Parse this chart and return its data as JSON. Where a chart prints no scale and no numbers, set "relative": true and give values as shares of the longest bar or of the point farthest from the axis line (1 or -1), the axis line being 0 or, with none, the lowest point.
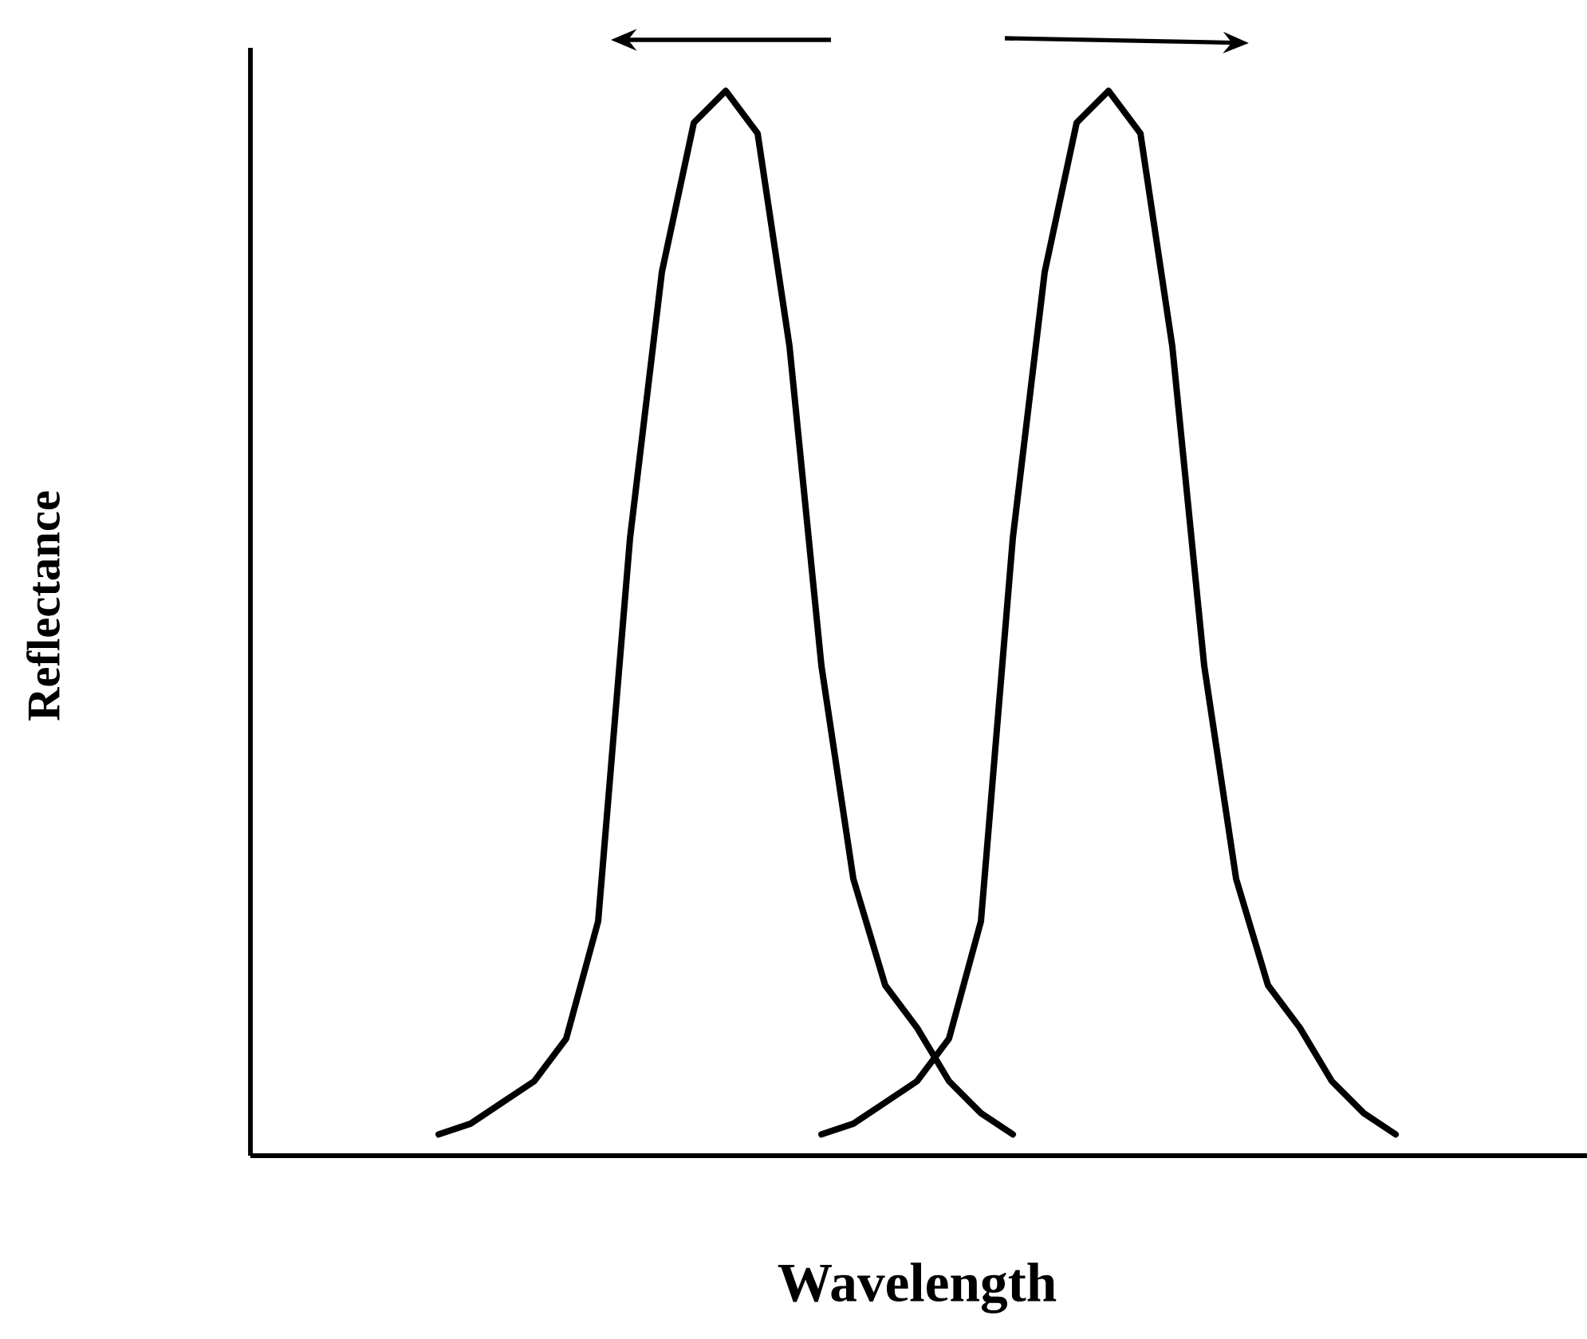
{
  "chart_data": {
    "type": "line",
    "xlabel": "Wavelength",
    "ylabel": "Reflectance",
    "relative": true,
    "categories": [
      null,
      null,
      null,
      null,
      null,
      null,
      null,
      null,
      null,
      null,
      null,
      null,
      null,
      null,
      null,
      null,
      null,
      null,
      null,
      null,
      null,
      null,
      null,
      null,
      null,
      null,
      null,
      null,
      null,
      null,
      null,
      null,
      null,
      null,
      null,
      null,
      null,
      null,
      null,
      null,
      null,
      null,
      null
    ],
    "series": [
      {
        "color": "#000000",
        "values": [
          null,
          null,
          null,
          null,
          null,
          null,
          0.02,
          0.03,
          0.05,
          0.07,
          0.11,
          0.22,
          0.58,
          0.83,
          0.97,
          1,
          0.96,
          0.76,
          0.46,
          0.26,
          0.16,
          0.12,
          0.07,
          0.04,
          0.02,
          null,
          null,
          null,
          null,
          null,
          null,
          null,
          null,
          null,
          null,
          null,
          null,
          null,
          null,
          null,
          null,
          null,
          null
        ]
      },
      {
        "color": "#000000",
        "values": [
          null,
          null,
          null,
          null,
          null,
          null,
          null,
          null,
          null,
          null,
          null,
          null,
          null,
          null,
          null,
          null,
          null,
          null,
          0.02,
          0.03,
          0.05,
          0.07,
          0.11,
          0.22,
          0.58,
          0.83,
          0.97,
          1,
          0.96,
          0.76,
          0.46,
          0.26,
          0.16,
          0.12,
          0.07,
          0.04,
          0.02,
          null,
          null,
          null,
          null,
          null,
          null
        ]
      }
    ]
  }
}
